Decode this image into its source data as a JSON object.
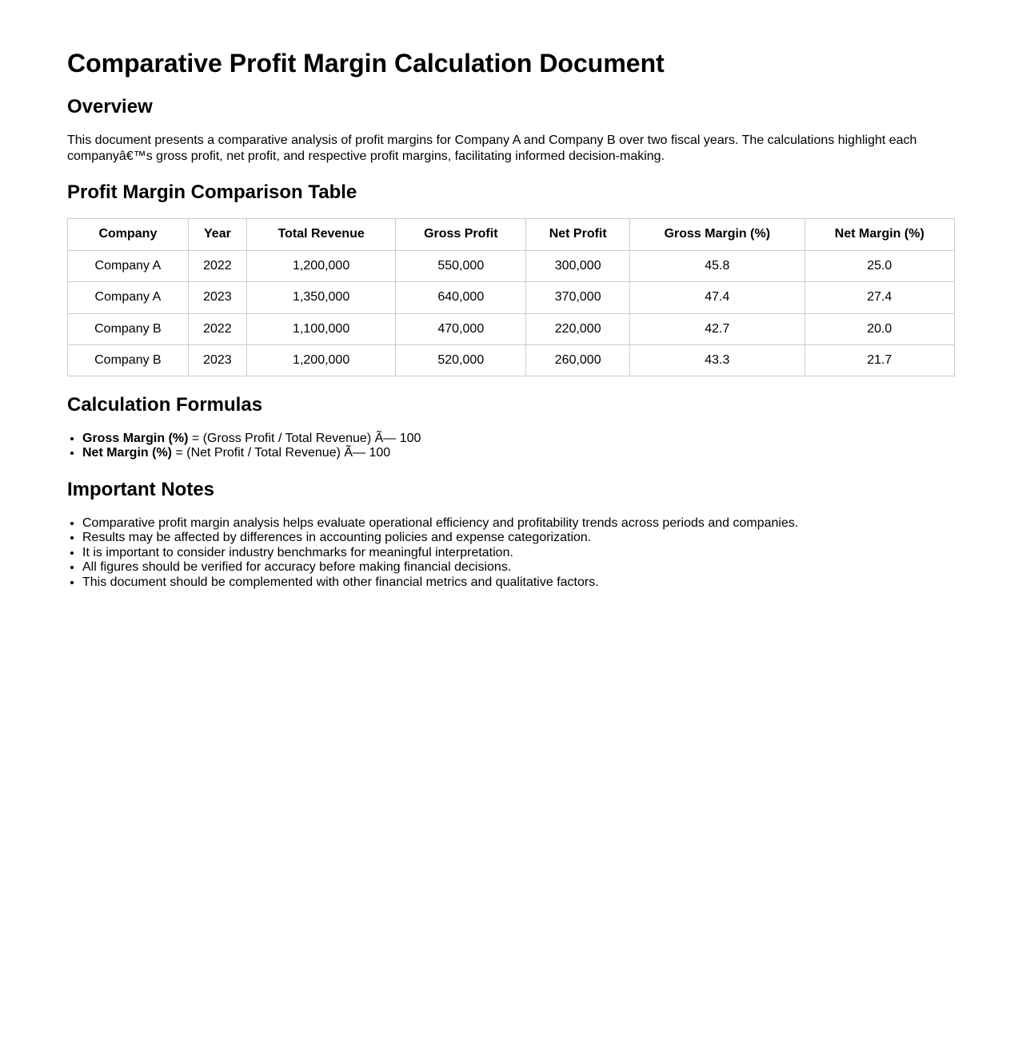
{
  "page": {
    "title": "Comparative Profit Margin Calculation Document"
  },
  "overview": {
    "heading": "Overview",
    "body": "This document presents a comparative analysis of profit margins for Company A and Company B over two fiscal years. The calculations highlight each companyâ€™s gross profit, net profit, and respective profit margins, facilitating informed decision-making."
  },
  "table_section": {
    "heading": "Profit Margin Comparison Table"
  },
  "table": {
    "columns": [
      "Company",
      "Year",
      "Total Revenue",
      "Gross Profit",
      "Net Profit",
      "Gross Margin (%)",
      "Net Margin (%)"
    ],
    "rows": [
      [
        "Company A",
        "2022",
        "1,200,000",
        "550,000",
        "300,000",
        "45.8",
        "25.0"
      ],
      [
        "Company A",
        "2023",
        "1,350,000",
        "640,000",
        "370,000",
        "47.4",
        "27.4"
      ],
      [
        "Company B",
        "2022",
        "1,100,000",
        "470,000",
        "220,000",
        "42.7",
        "20.0"
      ],
      [
        "Company B",
        "2023",
        "1,200,000",
        "520,000",
        "260,000",
        "43.3",
        "21.7"
      ]
    ]
  },
  "formulas": {
    "heading": "Calculation Formulas",
    "items": [
      {
        "term": "Gross Margin (%)",
        "rest": " = (Gross Profit / Total Revenue) Ã— 100"
      },
      {
        "term": "Net Margin (%)",
        "rest": " = (Net Profit / Total Revenue) Ã— 100"
      }
    ]
  },
  "notes": {
    "heading": "Important Notes",
    "items": [
      "Comparative profit margin analysis helps evaluate operational efficiency and profitability trends across periods and companies.",
      "Results may be affected by differences in accounting policies and expense categorization.",
      "It is important to consider industry benchmarks for meaningful interpretation.",
      "All figures should be verified for accuracy before making financial decisions.",
      "This document should be complemented with other financial metrics and qualitative factors."
    ]
  }
}
